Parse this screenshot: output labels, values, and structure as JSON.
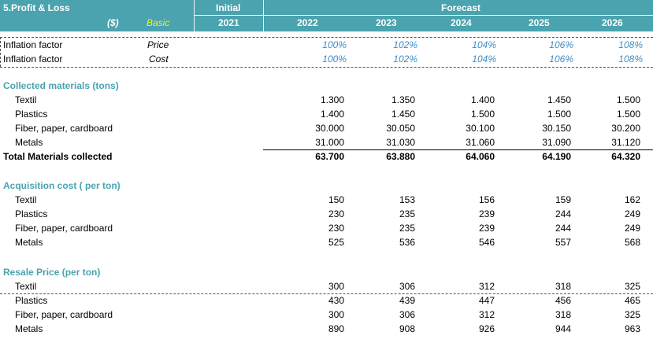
{
  "header": {
    "sheet_title": "5.Profit & Loss",
    "currency": "($)",
    "scenario": "Basic",
    "initial_label": "Initial",
    "forecast_label": "Forecast",
    "years": [
      "2021",
      "2022",
      "2023",
      "2024",
      "2025",
      "2026"
    ]
  },
  "inflation": [
    {
      "label": "Inflation factor",
      "type": "Price",
      "values": [
        "100%",
        "102%",
        "104%",
        "106%",
        "108%"
      ]
    },
    {
      "label": "Inflation factor",
      "type": "Cost",
      "values": [
        "100%",
        "102%",
        "104%",
        "106%",
        "108%"
      ]
    }
  ],
  "collected": {
    "title": "Collected materials (tons)",
    "rows": [
      {
        "label": "Textil",
        "values": [
          "1.300",
          "1.350",
          "1.400",
          "1.450",
          "1.500"
        ]
      },
      {
        "label": "Plastics",
        "values": [
          "1.400",
          "1.450",
          "1.500",
          "1.500",
          "1.500"
        ]
      },
      {
        "label": "Fiber, paper, cardboard",
        "values": [
          "30.000",
          "30.050",
          "30.100",
          "30.150",
          "30.200"
        ]
      },
      {
        "label": "Metals",
        "values": [
          "31.000",
          "31.030",
          "31.060",
          "31.090",
          "31.120"
        ]
      }
    ],
    "total": {
      "label": "Total Materials collected",
      "values": [
        "63.700",
        "63.880",
        "64.060",
        "64.190",
        "64.320"
      ]
    }
  },
  "acquisition": {
    "title": "Acquisition cost ( per ton)",
    "rows": [
      {
        "label": "Textil",
        "values": [
          "150",
          "153",
          "156",
          "159",
          "162"
        ]
      },
      {
        "label": "Plastics",
        "values": [
          "230",
          "235",
          "239",
          "244",
          "249"
        ]
      },
      {
        "label": "Fiber, paper, cardboard",
        "values": [
          "230",
          "235",
          "239",
          "244",
          "249"
        ]
      },
      {
        "label": "Metals",
        "values": [
          "525",
          "536",
          "546",
          "557",
          "568"
        ]
      }
    ]
  },
  "resale": {
    "title": "Resale Price (per ton)",
    "rows": [
      {
        "label": "Textil",
        "values": [
          "300",
          "306",
          "312",
          "318",
          "325"
        ]
      },
      {
        "label": "Plastics",
        "values": [
          "430",
          "439",
          "447",
          "456",
          "465"
        ]
      },
      {
        "label": "Fiber, paper, cardboard",
        "values": [
          "300",
          "306",
          "312",
          "318",
          "325"
        ]
      },
      {
        "label": "Metals",
        "values": [
          "890",
          "908",
          "926",
          "944",
          "963"
        ]
      }
    ]
  }
}
